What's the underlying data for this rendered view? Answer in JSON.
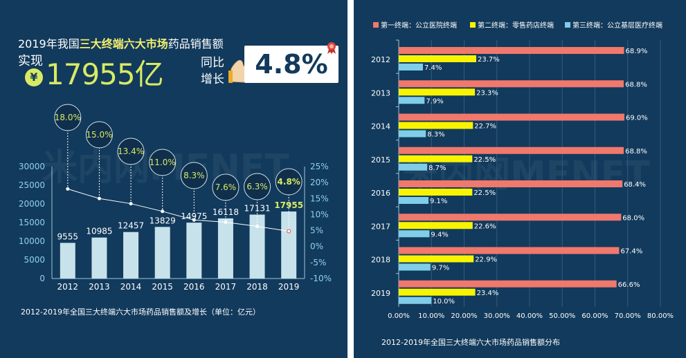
{
  "left": {
    "headline_prefix": "2019年我国",
    "headline_highlight": "三大终端六大市场",
    "headline_suffix": "药品销售额",
    "realize_label": "实现",
    "currency_symbol": "¥",
    "total_value": "17955亿",
    "yoy_label_1": "同比",
    "yoy_label_2": "增长",
    "growth": "4.8%",
    "caption": "2012-2019年全国三大终端六大市场药品销售额及增长（单位：亿元）",
    "watermark": "米内网MENET",
    "icons": [
      "yuan-icon",
      "hand-icon",
      "ribbon-icon"
    ]
  },
  "right": {
    "caption": "2012-2019年全国三大终端六大市场药品销售额分布",
    "watermark": "米内网MENET"
  },
  "colors": {
    "background": "#123a5c",
    "bar_left": "#c7e2ea",
    "growth_line": "#ffffff",
    "highlight_text": "#d8ea64",
    "circle_fill": "#0f2f4c",
    "series_1": "#f1786c",
    "series_2": "#f8f400",
    "series_3": "#7fcde9"
  },
  "chart_data": [
    {
      "type": "bar",
      "categories": [
        "2012",
        "2013",
        "2014",
        "2015",
        "2016",
        "2017",
        "2018",
        "2019"
      ],
      "series": [
        {
          "values": [
            9555,
            10985,
            12457,
            13829,
            14975,
            16118,
            17131,
            17955
          ]
        },
        {
          "type": "line",
          "values": [
            18.0,
            15.0,
            13.4,
            11.0,
            8.3,
            7.6,
            6.3,
            4.8
          ]
        }
      ],
      "value_labels": [
        "9555",
        "10985",
        "12457",
        "13829",
        "14975",
        "16118",
        "17131",
        "17955"
      ],
      "growth_labels": [
        "18.0%",
        "15.0%",
        "13.4%",
        "11.0%",
        "8.3%",
        "7.6%",
        "6.3%",
        "4.8%"
      ],
      "ylim": [
        0,
        30000
      ],
      "y_ticks": [
        "0",
        "5000",
        "10000",
        "15000",
        "20000",
        "25000",
        "30000"
      ],
      "y2lim": [
        -10,
        25
      ],
      "y2_ticks": [
        "-10%",
        "-5%",
        "0%",
        "5%",
        "10%",
        "15%",
        "20%",
        "25%"
      ],
      "grid": false
    },
    {
      "type": "bar",
      "orientation": "horizontal",
      "categories": [
        "2012",
        "2013",
        "2014",
        "2015",
        "2016",
        "2017",
        "2018",
        "2019"
      ],
      "series": [
        {
          "name": "第一终端：公立医院终端",
          "values": [
            68.9,
            68.8,
            69.0,
            68.8,
            68.4,
            68.0,
            67.4,
            66.6
          ]
        },
        {
          "name": "第二终端：零售药店终端",
          "values": [
            23.7,
            23.3,
            22.7,
            22.5,
            22.5,
            22.6,
            22.9,
            23.4
          ]
        },
        {
          "name": "第三终端：公立基层医疗终端",
          "values": [
            7.4,
            7.9,
            8.3,
            8.7,
            9.1,
            9.4,
            9.7,
            10.0
          ]
        }
      ],
      "xlim": [
        0,
        80
      ],
      "x_ticks": [
        "0.00%",
        "10.00%",
        "20.00%",
        "30.00%",
        "40.00%",
        "50.00%",
        "60.00%",
        "70.00%",
        "80.00%"
      ],
      "legend_position": "top",
      "grid": true
    }
  ]
}
